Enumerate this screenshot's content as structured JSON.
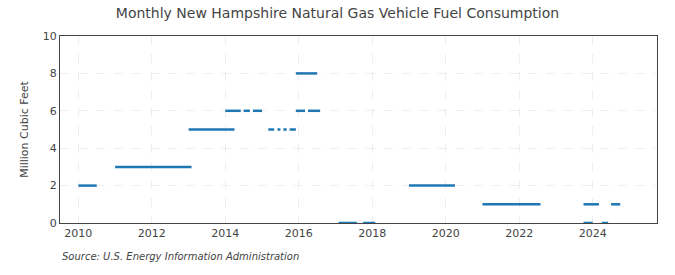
{
  "chart_data": {
    "type": "segments",
    "title": "Monthly New Hampshire Natural Gas Vehicle Fuel Consumption",
    "ylabel": "Million Cubic Feet",
    "annotations": [
      "Source: U.S. Energy Information Administration"
    ],
    "xlim": [
      2009.5,
      2025.75
    ],
    "ylim": [
      0,
      10
    ],
    "xticks": [
      2010,
      2012,
      2014,
      2016,
      2018,
      2020,
      2022,
      2024
    ],
    "yticks": [
      0,
      2,
      4,
      6,
      8,
      10
    ],
    "grid": true,
    "segments": [
      {
        "x0": 2010.0,
        "x1": 2010.5,
        "y": 2.0
      },
      {
        "x0": 2011.0,
        "x1": 2013.08,
        "y": 3.0
      },
      {
        "x0": 2013.0,
        "x1": 2014.25,
        "y": 5.0
      },
      {
        "x0": 2014.0,
        "x1": 2014.42,
        "y": 6.0
      },
      {
        "x0": 2014.5,
        "x1": 2014.67,
        "y": 6.0
      },
      {
        "x0": 2014.75,
        "x1": 2015.0,
        "y": 6.0
      },
      {
        "x0": 2015.17,
        "x1": 2015.33,
        "y": 5.0
      },
      {
        "x0": 2015.42,
        "x1": 2015.5,
        "y": 5.0
      },
      {
        "x0": 2015.58,
        "x1": 2015.67,
        "y": 5.0
      },
      {
        "x0": 2015.75,
        "x1": 2015.92,
        "y": 5.0
      },
      {
        "x0": 2015.92,
        "x1": 2016.17,
        "y": 6.0
      },
      {
        "x0": 2016.25,
        "x1": 2016.58,
        "y": 6.0
      },
      {
        "x0": 2015.92,
        "x1": 2016.5,
        "y": 8.0
      },
      {
        "x0": 2017.08,
        "x1": 2017.58,
        "y": 0.0
      },
      {
        "x0": 2017.75,
        "x1": 2018.08,
        "y": 0.0
      },
      {
        "x0": 2019.0,
        "x1": 2020.25,
        "y": 2.0
      },
      {
        "x0": 2021.0,
        "x1": 2022.58,
        "y": 1.0
      },
      {
        "x0": 2023.75,
        "x1": 2024.0,
        "y": 0.0
      },
      {
        "x0": 2024.25,
        "x1": 2024.42,
        "y": 0.0
      },
      {
        "x0": 2023.75,
        "x1": 2024.17,
        "y": 1.0
      },
      {
        "x0": 2024.5,
        "x1": 2024.75,
        "y": 1.0
      }
    ]
  }
}
